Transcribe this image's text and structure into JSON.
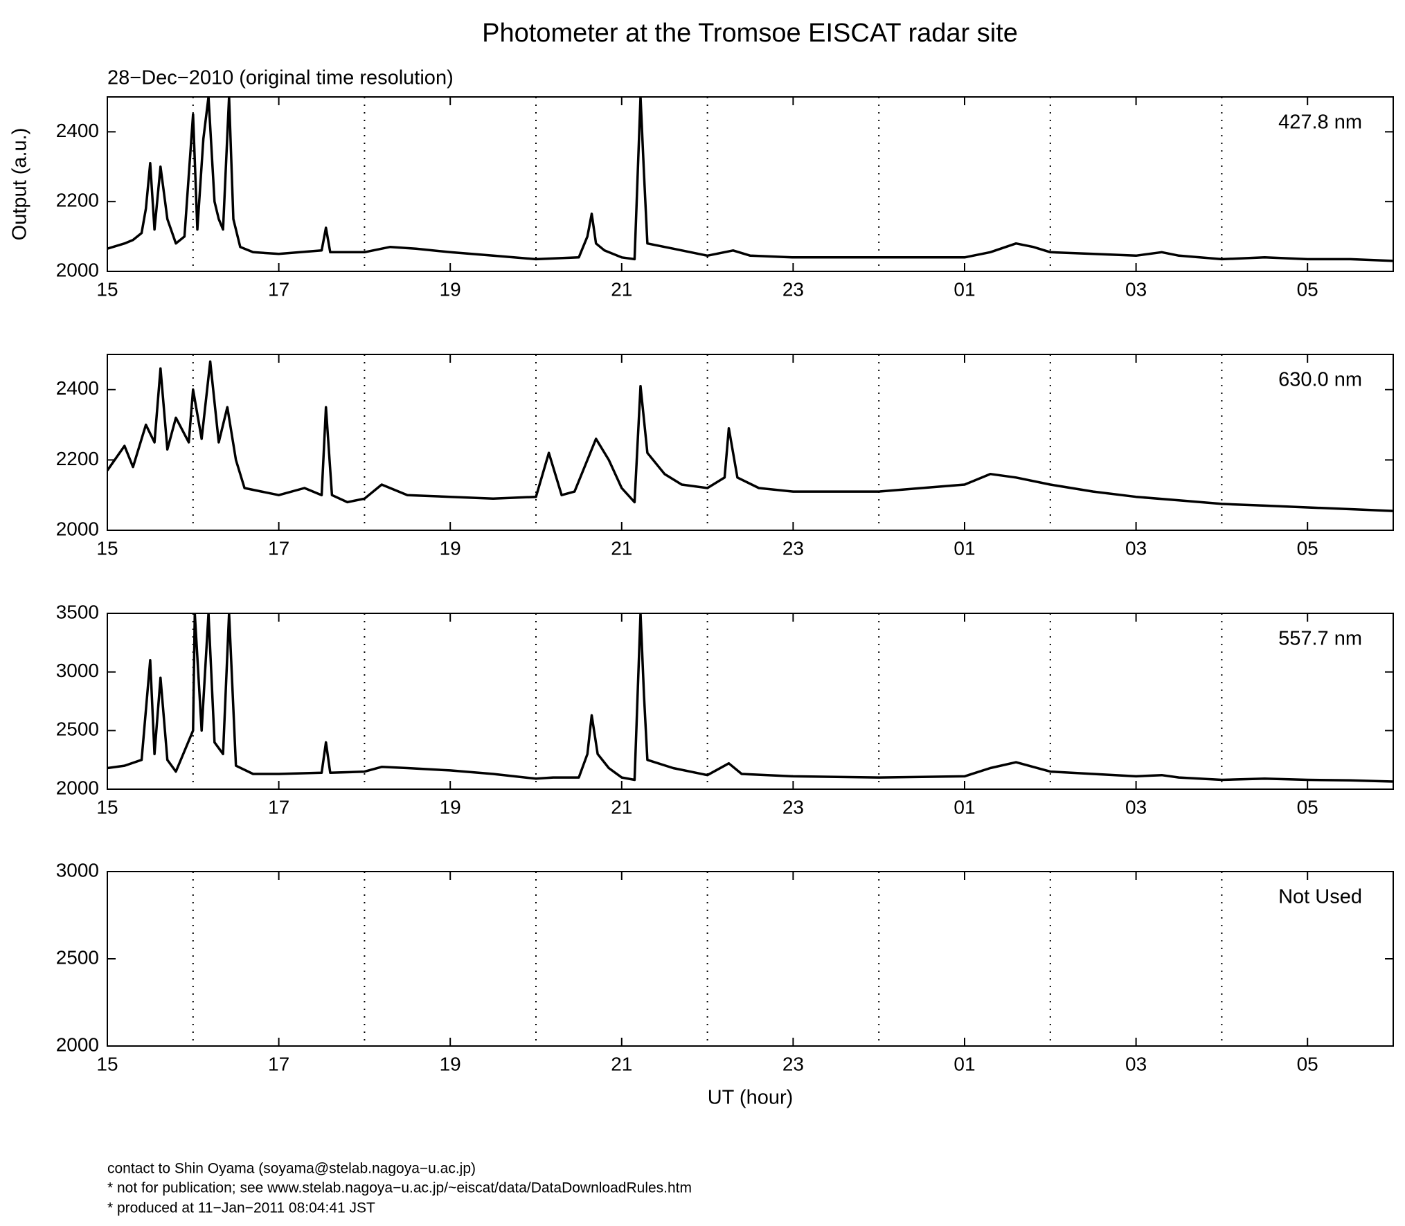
{
  "title": "Photometer at the Tromsoe EISCAT radar site",
  "chart_data": [
    {
      "type": "line",
      "subtitle": "28−Dec−2010 (original time resolution)",
      "ylabel": "Output (a.u.)",
      "label": "427.8 nm",
      "color": "#000000",
      "xlim": [
        15,
        30
      ],
      "xticks": [
        15,
        17,
        19,
        21,
        23,
        {
          "value": 25,
          "label": "01"
        },
        {
          "value": 27,
          "label": "03"
        },
        {
          "value": 29,
          "label": "05"
        }
      ],
      "xgrid": [
        16,
        18,
        20,
        22,
        24,
        26,
        28
      ],
      "ylim": [
        2000,
        2500
      ],
      "yticks": [
        2000,
        2200,
        2400
      ],
      "x": [
        15,
        15.2,
        15.3,
        15.4,
        15.45,
        15.5,
        15.55,
        15.62,
        15.7,
        15.8,
        15.9,
        16.0,
        16.05,
        16.12,
        16.18,
        16.25,
        16.3,
        16.35,
        16.42,
        16.47,
        16.55,
        16.7,
        17.0,
        17.5,
        17.55,
        17.6,
        18.0,
        18.3,
        18.6,
        19.0,
        19.5,
        20.0,
        20.5,
        20.6,
        20.65,
        20.7,
        20.8,
        21.0,
        21.15,
        21.22,
        21.26,
        21.3,
        21.6,
        22.0,
        22.3,
        22.5,
        23.0,
        24.0,
        25.0,
        25.3,
        25.6,
        25.8,
        26.0,
        26.5,
        27.0,
        27.3,
        27.5,
        28.0,
        28.5,
        29.0,
        29.5,
        30.0
      ],
      "values": [
        2065,
        2080,
        2090,
        2110,
        2180,
        2310,
        2120,
        2300,
        2150,
        2080,
        2100,
        2450,
        2120,
        2380,
        2500,
        2200,
        2150,
        2120,
        2500,
        2150,
        2070,
        2055,
        2050,
        2060,
        2125,
        2055,
        2055,
        2070,
        2065,
        2055,
        2045,
        2035,
        2040,
        2100,
        2165,
        2080,
        2060,
        2040,
        2035,
        2500,
        2280,
        2080,
        2065,
        2045,
        2060,
        2045,
        2040,
        2040,
        2040,
        2055,
        2080,
        2070,
        2055,
        2050,
        2045,
        2055,
        2045,
        2035,
        2040,
        2035,
        2035,
        2030
      ]
    },
    {
      "type": "line",
      "label": "630.0 nm",
      "color": "#000000",
      "xlim": [
        15,
        30
      ],
      "xticks": [
        15,
        17,
        19,
        21,
        23,
        {
          "value": 25,
          "label": "01"
        },
        {
          "value": 27,
          "label": "03"
        },
        {
          "value": 29,
          "label": "05"
        }
      ],
      "xgrid": [
        16,
        18,
        20,
        22,
        24,
        26,
        28
      ],
      "ylim": [
        2000,
        2500
      ],
      "yticks": [
        2000,
        2200,
        2400
      ],
      "x": [
        15,
        15.2,
        15.3,
        15.45,
        15.55,
        15.62,
        15.7,
        15.8,
        15.95,
        16.0,
        16.1,
        16.2,
        16.3,
        16.4,
        16.5,
        16.6,
        16.8,
        17.0,
        17.3,
        17.5,
        17.55,
        17.62,
        17.8,
        18.0,
        18.2,
        18.5,
        19.0,
        19.5,
        20.0,
        20.15,
        20.3,
        20.45,
        20.6,
        20.7,
        20.85,
        21.0,
        21.15,
        21.22,
        21.3,
        21.5,
        21.7,
        22.0,
        22.2,
        22.25,
        22.35,
        22.6,
        23.0,
        24.0,
        24.5,
        25.0,
        25.3,
        25.6,
        26.0,
        26.5,
        27.0,
        27.5,
        28.0,
        28.5,
        29.0,
        29.5,
        30.0
      ],
      "values": [
        2170,
        2240,
        2180,
        2300,
        2250,
        2460,
        2230,
        2320,
        2250,
        2400,
        2260,
        2480,
        2250,
        2350,
        2200,
        2120,
        2110,
        2100,
        2120,
        2100,
        2350,
        2100,
        2080,
        2090,
        2130,
        2100,
        2095,
        2090,
        2095,
        2220,
        2100,
        2110,
        2200,
        2260,
        2200,
        2120,
        2080,
        2410,
        2220,
        2160,
        2130,
        2120,
        2150,
        2290,
        2150,
        2120,
        2110,
        2110,
        2120,
        2130,
        2160,
        2150,
        2130,
        2110,
        2095,
        2085,
        2075,
        2070,
        2065,
        2060,
        2055
      ]
    },
    {
      "type": "line",
      "label": "557.7 nm",
      "color": "#000000",
      "xlim": [
        15,
        30
      ],
      "xticks": [
        15,
        17,
        19,
        21,
        23,
        {
          "value": 25,
          "label": "01"
        },
        {
          "value": 27,
          "label": "03"
        },
        {
          "value": 29,
          "label": "05"
        }
      ],
      "xgrid": [
        16,
        18,
        20,
        22,
        24,
        26,
        28
      ],
      "ylim": [
        2000,
        3500
      ],
      "yticks": [
        2000,
        2500,
        3000,
        3500
      ],
      "x": [
        15,
        15.2,
        15.4,
        15.5,
        15.55,
        15.62,
        15.7,
        15.8,
        16.0,
        16.02,
        16.1,
        16.18,
        16.25,
        16.35,
        16.42,
        16.5,
        16.7,
        17.0,
        17.5,
        17.55,
        17.6,
        18.0,
        18.2,
        18.5,
        19.0,
        19.5,
        20.0,
        20.2,
        20.5,
        20.6,
        20.65,
        20.72,
        20.85,
        21.0,
        21.15,
        21.22,
        21.26,
        21.3,
        21.6,
        22.0,
        22.25,
        22.4,
        23.0,
        24.0,
        25.0,
        25.3,
        25.6,
        26.0,
        26.5,
        27.0,
        27.3,
        27.5,
        28.0,
        28.5,
        29.0,
        29.5,
        30.0
      ],
      "values": [
        2180,
        2200,
        2250,
        3100,
        2300,
        2950,
        2250,
        2150,
        2500,
        3500,
        2500,
        3500,
        2400,
        2300,
        3500,
        2200,
        2130,
        2130,
        2140,
        2400,
        2140,
        2150,
        2190,
        2180,
        2160,
        2130,
        2090,
        2100,
        2100,
        2300,
        2630,
        2300,
        2180,
        2100,
        2080,
        3500,
        2800,
        2250,
        2180,
        2120,
        2220,
        2130,
        2110,
        2100,
        2110,
        2180,
        2230,
        2150,
        2130,
        2110,
        2120,
        2100,
        2080,
        2090,
        2080,
        2075,
        2065
      ]
    },
    {
      "type": "line",
      "label": "Not Used",
      "xlabel": "UT (hour)",
      "xlim": [
        15,
        30
      ],
      "xticks": [
        15,
        17,
        19,
        21,
        23,
        {
          "value": 25,
          "label": "01"
        },
        {
          "value": 27,
          "label": "03"
        },
        {
          "value": 29,
          "label": "05"
        }
      ],
      "xgrid": [
        16,
        18,
        20,
        22,
        24,
        26,
        28
      ],
      "ylim": [
        2000,
        3000
      ],
      "yticks": [
        2000,
        2500,
        3000
      ]
    }
  ],
  "footer": [
    "contact to Shin Oyama (soyama@stelab.nagoya−u.ac.jp)",
    "* not for publication; see www.stelab.nagoya−u.ac.jp/~eiscat/data/DataDownloadRules.htm",
    "* produced at 11−Jan−2011 08:04:41 JST"
  ]
}
